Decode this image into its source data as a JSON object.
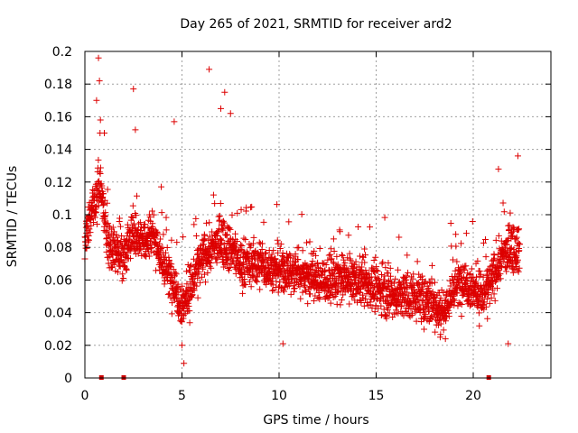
{
  "chart_data": {
    "type": "scatter",
    "title": "Day 265 of 2021, SRMTID for receiver ard2",
    "xlabel": "GPS time / hours",
    "ylabel": "SRMTID / TECUs",
    "xlim": [
      0,
      24
    ],
    "ylim": [
      0,
      0.2
    ],
    "xticks": [
      0,
      5,
      10,
      15,
      20
    ],
    "yticks": [
      0,
      0.02,
      0.04,
      0.06,
      0.08,
      0.1,
      0.12,
      0.14,
      0.16,
      0.18,
      0.2
    ],
    "grid": true,
    "marker": "plus",
    "color": "#dd0000",
    "gap_markers_x": [
      0.85,
      2.0,
      20.8
    ],
    "series": [
      {
        "name": "SRMTID",
        "description": "Scattered SRMTID values between about 0.02 and 0.14 TECU from 0 to 22.5 h, elevated near 0-1 h, 6.5-7.5 h and 21-22.5 h",
        "trend": [
          [
            0.0,
            0.085
          ],
          [
            0.3,
            0.1
          ],
          [
            0.6,
            0.11
          ],
          [
            0.8,
            0.12
          ],
          [
            1.2,
            0.08
          ],
          [
            2.0,
            0.075
          ],
          [
            2.5,
            0.09
          ],
          [
            3.0,
            0.085
          ],
          [
            3.5,
            0.09
          ],
          [
            4.0,
            0.07
          ],
          [
            4.5,
            0.06
          ],
          [
            5.0,
            0.045
          ],
          [
            5.3,
            0.05
          ],
          [
            5.7,
            0.065
          ],
          [
            6.2,
            0.075
          ],
          [
            7.0,
            0.085
          ],
          [
            7.5,
            0.08
          ],
          [
            8.0,
            0.07
          ],
          [
            9.0,
            0.07
          ],
          [
            10.0,
            0.065
          ],
          [
            11.0,
            0.065
          ],
          [
            12.0,
            0.06
          ],
          [
            13.0,
            0.06
          ],
          [
            14.0,
            0.06
          ],
          [
            15.0,
            0.055
          ],
          [
            16.0,
            0.05
          ],
          [
            17.0,
            0.05
          ],
          [
            18.0,
            0.045
          ],
          [
            18.5,
            0.04
          ],
          [
            19.0,
            0.055
          ],
          [
            19.5,
            0.06
          ],
          [
            20.0,
            0.055
          ],
          [
            20.5,
            0.05
          ],
          [
            21.0,
            0.06
          ],
          [
            21.5,
            0.075
          ],
          [
            22.0,
            0.08
          ],
          [
            22.4,
            0.08
          ]
        ],
        "extremes": [
          [
            0.7,
            0.196
          ],
          [
            0.75,
            0.182
          ],
          [
            0.6,
            0.17
          ],
          [
            0.8,
            0.158
          ],
          [
            2.5,
            0.177
          ],
          [
            6.4,
            0.189
          ],
          [
            7.2,
            0.175
          ],
          [
            7.0,
            0.165
          ],
          [
            7.5,
            0.162
          ],
          [
            2.6,
            0.152
          ],
          [
            4.6,
            0.157
          ],
          [
            22.3,
            0.136
          ],
          [
            21.3,
            0.128
          ],
          [
            1.0,
            0.15
          ],
          [
            5.1,
            0.009
          ],
          [
            5.0,
            0.02
          ],
          [
            10.2,
            0.021
          ],
          [
            21.8,
            0.021
          ],
          [
            18.3,
            0.025
          ]
        ]
      }
    ]
  }
}
